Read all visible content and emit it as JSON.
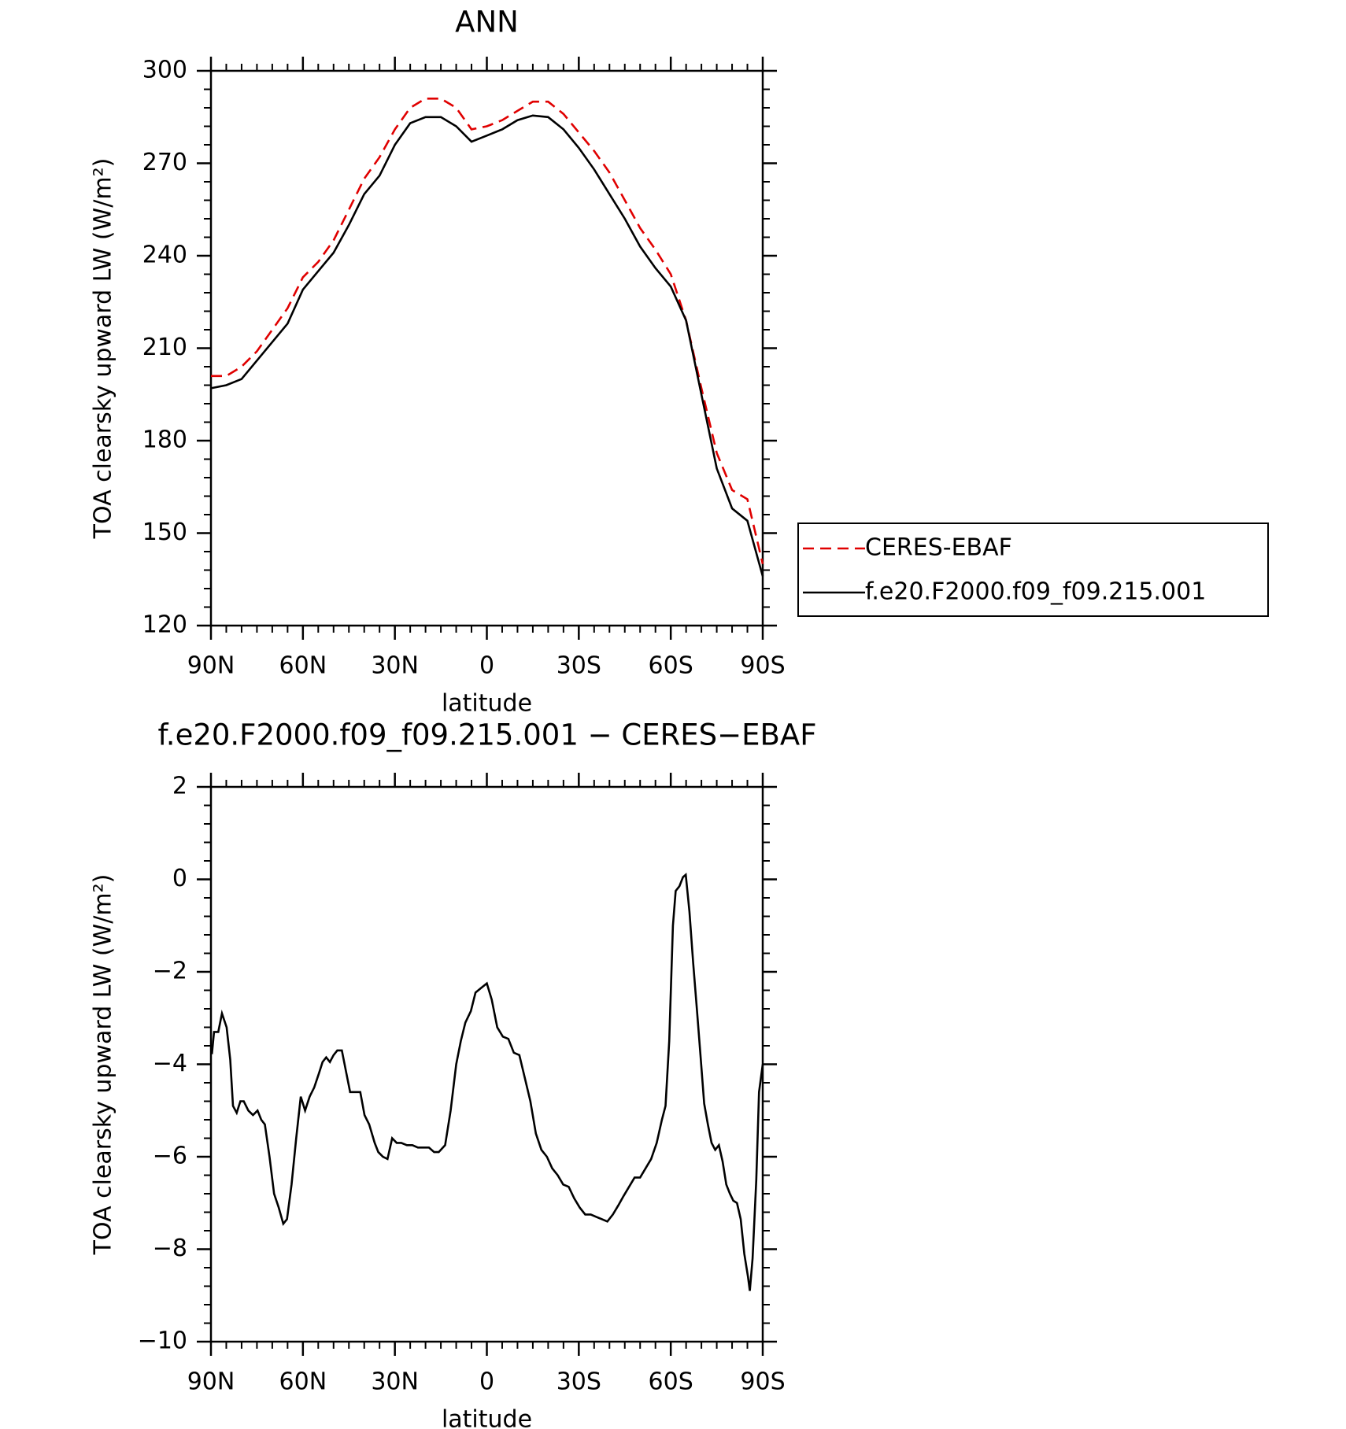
{
  "chart_data": [
    {
      "type": "line",
      "title": "ANN",
      "xlabel": "latitude",
      "ylabel": "TOA clearsky upward LW (W/m²)",
      "x": [
        90,
        85,
        80,
        75,
        70,
        65,
        60,
        55,
        50,
        45,
        40,
        35,
        30,
        25,
        20,
        15,
        10,
        5,
        0,
        -5,
        -10,
        -15,
        -20,
        -25,
        -30,
        -35,
        -40,
        -45,
        -50,
        -55,
        -60,
        -65,
        -70,
        -75,
        -80,
        -85,
        -90
      ],
      "series": [
        {
          "name": "CERES-EBAF",
          "color": "#e00000",
          "dashed": true,
          "values": [
            201,
            201,
            204,
            209,
            216,
            223,
            233,
            238,
            245,
            255,
            265,
            272,
            281,
            288,
            291,
            291,
            288,
            281,
            282,
            284,
            287,
            290,
            290,
            286,
            280,
            274,
            267,
            258,
            249,
            242,
            234,
            219,
            197,
            176,
            164,
            161,
            140
          ]
        },
        {
          "name": "f.e20.F2000.f09_f09.215.001",
          "color": "#000000",
          "dashed": false,
          "values": [
            197,
            198,
            200,
            206,
            212,
            218,
            229,
            235,
            241,
            250,
            260,
            266,
            276,
            283,
            285,
            285,
            282,
            277,
            279,
            281,
            284,
            285.5,
            285,
            281,
            275,
            268,
            260,
            252,
            243,
            236,
            230,
            219,
            195,
            171,
            158,
            154,
            136
          ]
        }
      ],
      "xlim": [
        90,
        -90
      ],
      "xticks": [
        {
          "value": 90,
          "label": "90N"
        },
        {
          "value": 60,
          "label": "60N"
        },
        {
          "value": 30,
          "label": "30N"
        },
        0,
        {
          "value": -30,
          "label": "30S"
        },
        {
          "value": -60,
          "label": "60S"
        },
        {
          "value": -90,
          "label": "90S"
        }
      ],
      "ylim": [
        120,
        300
      ],
      "yticks": [
        120,
        150,
        180,
        210,
        240,
        270,
        300
      ],
      "legend": "right"
    },
    {
      "type": "line",
      "title": "f.e20.F2000.f09_f09.215.001 − CERES−EBAF",
      "xlabel": "latitude",
      "ylabel": "TOA clearsky upward LW (W/m²)",
      "x": [
        89.7,
        89,
        87.6,
        86.4,
        84.9,
        83.7,
        82.8,
        81.6,
        80.4,
        79.3,
        77.8,
        76.3,
        74.8,
        73.6,
        72.4,
        70.9,
        69.4,
        67.9,
        66.4,
        65.2,
        63.7,
        62.2,
        60.7,
        59.3,
        57.8,
        56.3,
        54.8,
        53.6,
        52.4,
        51.2,
        50,
        48.8,
        47.3,
        45.8,
        44.6,
        42.8,
        41.3,
        39.9,
        38.4,
        36.6,
        35.4,
        33.9,
        32.4,
        30.9,
        29.4,
        27.9,
        26.1,
        24.3,
        22.5,
        20.7,
        18.9,
        17.2,
        15.7,
        13.6,
        11.8,
        10,
        8.5,
        7,
        5.2,
        3.7,
        1.9,
        0,
        -1.6,
        -3.4,
        -5.2,
        -7,
        -8.8,
        -10.6,
        -12.4,
        -14.2,
        -16,
        -17.8,
        -19.6,
        -21.3,
        -23.1,
        -24.9,
        -26.7,
        -28.5,
        -30.3,
        -32.1,
        -33.9,
        -35.7,
        -37.5,
        -39.3,
        -41.1,
        -42.9,
        -44.6,
        -46.4,
        -48.2,
        -50,
        -51.8,
        -53.6,
        -55.4,
        -57.1,
        -58.3,
        -59.5,
        -60.7,
        -61.6,
        -62.8,
        -64,
        -64.9,
        -66.1,
        -67.3,
        -68.5,
        -69.7,
        -70.9,
        -72.1,
        -73.3,
        -74.5,
        -75.7,
        -76.9,
        -78.1,
        -79.3,
        -80.4,
        -81.6,
        -82.8,
        -84,
        -85.2,
        -85.8,
        -86.7,
        -87.9,
        -88.8,
        -90
      ],
      "values": [
        -3.78,
        -3.3,
        -3.3,
        -2.9,
        -3.2,
        -3.9,
        -4.9,
        -5.05,
        -4.8,
        -4.8,
        -5,
        -5.1,
        -5,
        -5.2,
        -5.3,
        -6,
        -6.8,
        -7.1,
        -7.45,
        -7.35,
        -6.6,
        -5.6,
        -4.7,
        -5,
        -4.7,
        -4.5,
        -4.2,
        -3.95,
        -3.85,
        -3.95,
        -3.8,
        -3.7,
        -3.7,
        -4.2,
        -4.6,
        -4.6,
        -4.6,
        -5.1,
        -5.3,
        -5.7,
        -5.9,
        -6,
        -6.05,
        -5.6,
        -5.7,
        -5.7,
        -5.75,
        -5.75,
        -5.8,
        -5.8,
        -5.8,
        -5.9,
        -5.9,
        -5.75,
        -5,
        -4,
        -3.5,
        -3.1,
        -2.85,
        -2.45,
        -2.35,
        -2.25,
        -2.6,
        -3.2,
        -3.4,
        -3.45,
        -3.75,
        -3.8,
        -4.3,
        -4.8,
        -5.5,
        -5.85,
        -6,
        -6.25,
        -6.4,
        -6.6,
        -6.65,
        -6.9,
        -7.1,
        -7.25,
        -7.25,
        -7.3,
        -7.35,
        -7.4,
        -7.25,
        -7.05,
        -6.85,
        -6.65,
        -6.45,
        -6.45,
        -6.25,
        -6.05,
        -5.7,
        -5.2,
        -4.9,
        -3.5,
        -1,
        -0.25,
        -0.15,
        0.05,
        0.1,
        -0.7,
        -1.8,
        -2.8,
        -3.8,
        -4.85,
        -5.3,
        -5.7,
        -5.85,
        -5.75,
        -6.1,
        -6.6,
        -6.8,
        -6.95,
        -7,
        -7.35,
        -8.1,
        -8.6,
        -8.9,
        -8.2,
        -6.5,
        -4.6,
        -4
      ],
      "color": "#000000",
      "xlim": [
        90,
        -90
      ],
      "xticks": [
        {
          "value": 90,
          "label": "90N"
        },
        {
          "value": 60,
          "label": "60N"
        },
        {
          "value": 30,
          "label": "30N"
        },
        0,
        {
          "value": -30,
          "label": "30S"
        },
        {
          "value": -60,
          "label": "60S"
        },
        {
          "value": -90,
          "label": "90S"
        }
      ],
      "ylim": [
        -10,
        2
      ],
      "yticks": [
        {
          "value": -10,
          "label": "−10"
        },
        {
          "value": -8,
          "label": "−8"
        },
        {
          "value": -6,
          "label": "−6"
        },
        {
          "value": -4,
          "label": "−4"
        },
        {
          "value": -2,
          "label": "−2"
        },
        0,
        2
      ]
    }
  ]
}
